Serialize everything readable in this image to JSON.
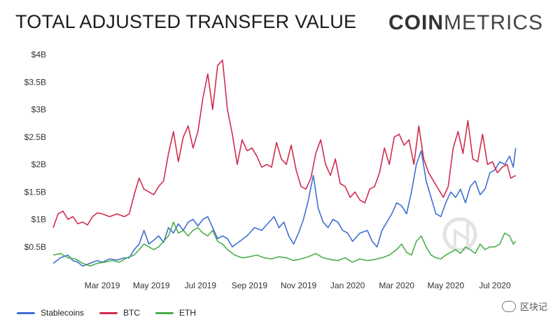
{
  "header": {
    "title": "TOTAL ADJUSTED TRANSFER VALUE",
    "logo_bold": "COIN",
    "logo_light": "METRICS"
  },
  "watermark": {
    "text": "区块记"
  },
  "chart_data": {
    "type": "line",
    "title": "TOTAL ADJUSTED TRANSFER VALUE",
    "xlabel": "",
    "ylabel": "",
    "x_start": "2019-01-01",
    "x_end": "2020-07-31",
    "xlim": [
      0,
      19
    ],
    "ylim": [
      0,
      4
    ],
    "y_ticks": [
      0.5,
      1,
      1.5,
      2,
      2.5,
      3,
      3.5,
      4
    ],
    "y_tick_labels": [
      "$0.5B",
      "$1B",
      "$1.5B",
      "$2B",
      "$2.5B",
      "$3B",
      "$3.5B",
      "$4B"
    ],
    "x_ticks": [
      2,
      4,
      6,
      8,
      10,
      12,
      14,
      16,
      18
    ],
    "x_tick_labels": [
      "Mar 2019",
      "May 2019",
      "Jul 2019",
      "Sep 2019",
      "Nov 2019",
      "Jan 2020",
      "Mar 2020",
      "May 2020",
      "Jul 2020"
    ],
    "grid": false,
    "legend_position": "bottom-left",
    "series": [
      {
        "name": "Stablecoins",
        "color": "#3f6fd1",
        "points": [
          [
            0,
            0.2
          ],
          [
            0.3,
            0.3
          ],
          [
            0.6,
            0.35
          ],
          [
            0.8,
            0.25
          ],
          [
            1.0,
            0.22
          ],
          [
            1.2,
            0.15
          ],
          [
            1.5,
            0.2
          ],
          [
            1.8,
            0.25
          ],
          [
            2.0,
            0.22
          ],
          [
            2.3,
            0.28
          ],
          [
            2.6,
            0.26
          ],
          [
            2.9,
            0.3
          ],
          [
            3.1,
            0.3
          ],
          [
            3.3,
            0.45
          ],
          [
            3.5,
            0.55
          ],
          [
            3.7,
            0.8
          ],
          [
            3.9,
            0.55
          ],
          [
            4.1,
            0.62
          ],
          [
            4.3,
            0.7
          ],
          [
            4.5,
            0.58
          ],
          [
            4.7,
            0.85
          ],
          [
            4.9,
            0.75
          ],
          [
            5.1,
            0.92
          ],
          [
            5.3,
            0.8
          ],
          [
            5.5,
            0.95
          ],
          [
            5.7,
            1.0
          ],
          [
            5.9,
            0.88
          ],
          [
            6.1,
            1.0
          ],
          [
            6.3,
            1.05
          ],
          [
            6.5,
            0.85
          ],
          [
            6.7,
            0.65
          ],
          [
            6.9,
            0.7
          ],
          [
            7.1,
            0.65
          ],
          [
            7.3,
            0.5
          ],
          [
            7.6,
            0.6
          ],
          [
            7.9,
            0.7
          ],
          [
            8.2,
            0.85
          ],
          [
            8.5,
            0.8
          ],
          [
            8.8,
            0.95
          ],
          [
            9.0,
            1.05
          ],
          [
            9.2,
            0.85
          ],
          [
            9.4,
            0.95
          ],
          [
            9.6,
            0.7
          ],
          [
            9.8,
            0.55
          ],
          [
            10.0,
            0.75
          ],
          [
            10.2,
            1.0
          ],
          [
            10.4,
            1.35
          ],
          [
            10.6,
            1.8
          ],
          [
            10.8,
            1.2
          ],
          [
            11.0,
            0.95
          ],
          [
            11.2,
            0.85
          ],
          [
            11.4,
            1.0
          ],
          [
            11.6,
            0.95
          ],
          [
            11.8,
            0.8
          ],
          [
            12.0,
            0.75
          ],
          [
            12.2,
            0.6
          ],
          [
            12.5,
            0.75
          ],
          [
            12.8,
            0.8
          ],
          [
            13.0,
            0.6
          ],
          [
            13.2,
            0.5
          ],
          [
            13.4,
            0.8
          ],
          [
            13.6,
            0.95
          ],
          [
            13.8,
            1.1
          ],
          [
            14.0,
            1.3
          ],
          [
            14.2,
            1.25
          ],
          [
            14.4,
            1.1
          ],
          [
            14.6,
            1.5
          ],
          [
            14.8,
            2.0
          ],
          [
            15.0,
            2.25
          ],
          [
            15.2,
            1.7
          ],
          [
            15.4,
            1.4
          ],
          [
            15.6,
            1.1
          ],
          [
            15.8,
            1.05
          ],
          [
            16.0,
            1.3
          ],
          [
            16.2,
            1.5
          ],
          [
            16.4,
            1.4
          ],
          [
            16.6,
            1.55
          ],
          [
            16.8,
            1.3
          ],
          [
            17.0,
            1.6
          ],
          [
            17.2,
            1.7
          ],
          [
            17.4,
            1.45
          ],
          [
            17.6,
            1.55
          ],
          [
            17.8,
            1.85
          ],
          [
            18.0,
            1.9
          ],
          [
            18.2,
            2.05
          ],
          [
            18.4,
            2.0
          ],
          [
            18.6,
            2.15
          ],
          [
            18.75,
            1.95
          ],
          [
            18.85,
            2.3
          ]
        ]
      },
      {
        "name": "BTC",
        "color": "#d02c4e",
        "points": [
          [
            0,
            0.85
          ],
          [
            0.2,
            1.1
          ],
          [
            0.4,
            1.15
          ],
          [
            0.6,
            1.0
          ],
          [
            0.8,
            1.05
          ],
          [
            1.0,
            0.92
          ],
          [
            1.2,
            0.95
          ],
          [
            1.4,
            0.9
          ],
          [
            1.6,
            1.05
          ],
          [
            1.8,
            1.12
          ],
          [
            2.0,
            1.1
          ],
          [
            2.3,
            1.05
          ],
          [
            2.6,
            1.1
          ],
          [
            2.9,
            1.05
          ],
          [
            3.1,
            1.1
          ],
          [
            3.3,
            1.45
          ],
          [
            3.5,
            1.75
          ],
          [
            3.7,
            1.55
          ],
          [
            3.9,
            1.5
          ],
          [
            4.1,
            1.45
          ],
          [
            4.3,
            1.6
          ],
          [
            4.5,
            1.7
          ],
          [
            4.7,
            2.2
          ],
          [
            4.9,
            2.6
          ],
          [
            5.1,
            2.05
          ],
          [
            5.3,
            2.5
          ],
          [
            5.5,
            2.7
          ],
          [
            5.7,
            2.3
          ],
          [
            5.9,
            2.6
          ],
          [
            6.1,
            3.2
          ],
          [
            6.3,
            3.65
          ],
          [
            6.5,
            3.0
          ],
          [
            6.7,
            3.8
          ],
          [
            6.9,
            3.9
          ],
          [
            7.1,
            3.0
          ],
          [
            7.3,
            2.55
          ],
          [
            7.5,
            2.0
          ],
          [
            7.7,
            2.45
          ],
          [
            7.9,
            2.25
          ],
          [
            8.1,
            2.3
          ],
          [
            8.3,
            2.15
          ],
          [
            8.5,
            1.95
          ],
          [
            8.7,
            2.0
          ],
          [
            8.9,
            1.95
          ],
          [
            9.1,
            2.4
          ],
          [
            9.3,
            2.1
          ],
          [
            9.5,
            2.0
          ],
          [
            9.7,
            2.35
          ],
          [
            9.9,
            1.9
          ],
          [
            10.1,
            1.6
          ],
          [
            10.3,
            1.55
          ],
          [
            10.5,
            1.75
          ],
          [
            10.7,
            2.2
          ],
          [
            10.9,
            2.45
          ],
          [
            11.1,
            2.0
          ],
          [
            11.3,
            1.8
          ],
          [
            11.5,
            2.1
          ],
          [
            11.7,
            1.65
          ],
          [
            11.9,
            1.6
          ],
          [
            12.1,
            1.4
          ],
          [
            12.3,
            1.5
          ],
          [
            12.5,
            1.35
          ],
          [
            12.7,
            1.3
          ],
          [
            12.9,
            1.55
          ],
          [
            13.1,
            1.6
          ],
          [
            13.3,
            1.85
          ],
          [
            13.5,
            2.3
          ],
          [
            13.7,
            2.0
          ],
          [
            13.9,
            2.5
          ],
          [
            14.1,
            2.55
          ],
          [
            14.3,
            2.35
          ],
          [
            14.5,
            2.45
          ],
          [
            14.7,
            2.0
          ],
          [
            14.9,
            2.7
          ],
          [
            15.1,
            2.1
          ],
          [
            15.3,
            1.85
          ],
          [
            15.5,
            1.7
          ],
          [
            15.7,
            1.55
          ],
          [
            15.9,
            1.4
          ],
          [
            16.1,
            1.6
          ],
          [
            16.3,
            2.3
          ],
          [
            16.5,
            2.6
          ],
          [
            16.7,
            2.2
          ],
          [
            16.9,
            2.8
          ],
          [
            17.1,
            2.1
          ],
          [
            17.3,
            2.05
          ],
          [
            17.5,
            2.55
          ],
          [
            17.7,
            2.0
          ],
          [
            17.9,
            2.05
          ],
          [
            18.1,
            1.85
          ],
          [
            18.3,
            1.95
          ],
          [
            18.5,
            2.0
          ],
          [
            18.65,
            1.75
          ],
          [
            18.85,
            1.8
          ]
        ]
      },
      {
        "name": "ETH",
        "color": "#4cae4c",
        "points": [
          [
            0,
            0.35
          ],
          [
            0.3,
            0.38
          ],
          [
            0.6,
            0.3
          ],
          [
            0.9,
            0.28
          ],
          [
            1.2,
            0.2
          ],
          [
            1.5,
            0.15
          ],
          [
            1.8,
            0.2
          ],
          [
            2.1,
            0.22
          ],
          [
            2.4,
            0.25
          ],
          [
            2.7,
            0.22
          ],
          [
            3.0,
            0.3
          ],
          [
            3.3,
            0.35
          ],
          [
            3.5,
            0.45
          ],
          [
            3.7,
            0.55
          ],
          [
            3.9,
            0.5
          ],
          [
            4.1,
            0.45
          ],
          [
            4.3,
            0.5
          ],
          [
            4.5,
            0.6
          ],
          [
            4.7,
            0.7
          ],
          [
            4.9,
            0.95
          ],
          [
            5.1,
            0.75
          ],
          [
            5.3,
            0.8
          ],
          [
            5.5,
            0.7
          ],
          [
            5.7,
            0.8
          ],
          [
            5.9,
            0.85
          ],
          [
            6.1,
            0.75
          ],
          [
            6.3,
            0.7
          ],
          [
            6.5,
            0.8
          ],
          [
            6.7,
            0.6
          ],
          [
            6.9,
            0.55
          ],
          [
            7.1,
            0.45
          ],
          [
            7.4,
            0.35
          ],
          [
            7.7,
            0.3
          ],
          [
            8.0,
            0.32
          ],
          [
            8.3,
            0.35
          ],
          [
            8.6,
            0.3
          ],
          [
            8.9,
            0.28
          ],
          [
            9.2,
            0.32
          ],
          [
            9.5,
            0.3
          ],
          [
            9.8,
            0.25
          ],
          [
            10.1,
            0.28
          ],
          [
            10.4,
            0.32
          ],
          [
            10.7,
            0.38
          ],
          [
            11.0,
            0.3
          ],
          [
            11.3,
            0.27
          ],
          [
            11.6,
            0.25
          ],
          [
            11.9,
            0.3
          ],
          [
            12.2,
            0.22
          ],
          [
            12.5,
            0.28
          ],
          [
            12.8,
            0.25
          ],
          [
            13.1,
            0.27
          ],
          [
            13.4,
            0.3
          ],
          [
            13.7,
            0.35
          ],
          [
            14.0,
            0.45
          ],
          [
            14.2,
            0.55
          ],
          [
            14.4,
            0.4
          ],
          [
            14.6,
            0.35
          ],
          [
            14.8,
            0.6
          ],
          [
            15.0,
            0.7
          ],
          [
            15.2,
            0.5
          ],
          [
            15.4,
            0.35
          ],
          [
            15.6,
            0.3
          ],
          [
            15.8,
            0.28
          ],
          [
            16.0,
            0.35
          ],
          [
            16.2,
            0.4
          ],
          [
            16.4,
            0.45
          ],
          [
            16.6,
            0.38
          ],
          [
            16.8,
            0.5
          ],
          [
            17.0,
            0.45
          ],
          [
            17.2,
            0.38
          ],
          [
            17.4,
            0.55
          ],
          [
            17.6,
            0.45
          ],
          [
            17.8,
            0.5
          ],
          [
            18.0,
            0.5
          ],
          [
            18.2,
            0.55
          ],
          [
            18.4,
            0.75
          ],
          [
            18.6,
            0.7
          ],
          [
            18.75,
            0.55
          ],
          [
            18.85,
            0.6
          ]
        ]
      }
    ]
  }
}
